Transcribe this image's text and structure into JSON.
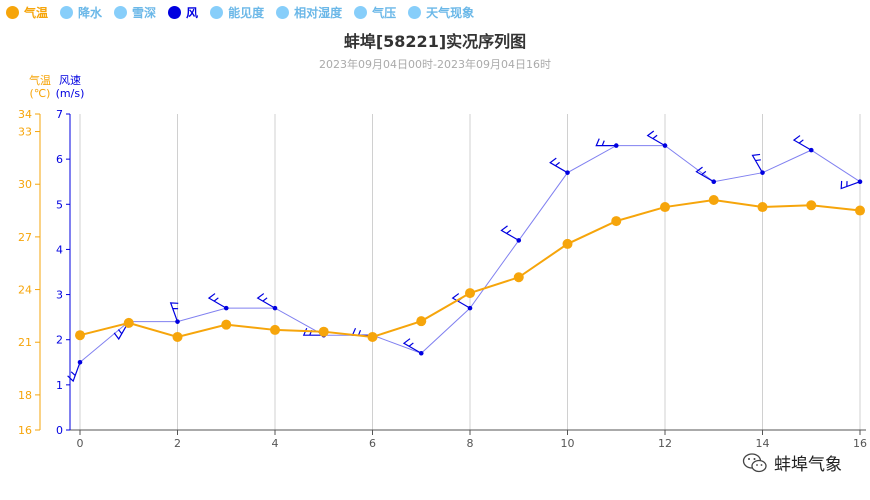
{
  "legend": [
    {
      "label": "气温",
      "color": "#f6a50b",
      "active": true
    },
    {
      "label": "降水",
      "color": "#87cefa",
      "active": false
    },
    {
      "label": "雪深",
      "color": "#87cefa",
      "active": false
    },
    {
      "label": "风",
      "color": "#0000e0",
      "active": true
    },
    {
      "label": "能见度",
      "color": "#87cefa",
      "active": false
    },
    {
      "label": "相对湿度",
      "color": "#87cefa",
      "active": false
    },
    {
      "label": "气压",
      "color": "#87cefa",
      "active": false
    },
    {
      "label": "天气现象",
      "color": "#87cefa",
      "active": false
    }
  ],
  "watermark": {
    "text": "蚌埠气象",
    "icon": "wechat-icon"
  },
  "colors": {
    "temperature": "#f6a50b",
    "wind": "#0000e0",
    "wind_line": "#8080f0",
    "grid": "#d0d0d0"
  },
  "chart_data": {
    "type": "line",
    "title": "蚌埠[58221]实况序列图",
    "subtitle": "2023年09月04日00时-2023年09月04日16时",
    "x": [
      0,
      1,
      2,
      3,
      4,
      5,
      6,
      7,
      8,
      9,
      10,
      11,
      12,
      13,
      14,
      15,
      16
    ],
    "x_ticks": [
      "0",
      "2",
      "4",
      "6",
      "8",
      "10",
      "12",
      "14",
      "16"
    ],
    "xlim": [
      0,
      16
    ],
    "grid": "vertical",
    "y_left": {
      "label": "气温",
      "unit": "(℃)",
      "ticks": [
        "16",
        "18",
        "21",
        "24",
        "27",
        "30",
        "33",
        "34"
      ],
      "ylim": [
        16,
        34
      ]
    },
    "y_right": {
      "label": "风速",
      "unit": "(m/s)",
      "ticks": [
        "0",
        "1",
        "2",
        "3",
        "4",
        "5",
        "6",
        "7"
      ],
      "ylim": [
        0,
        7
      ]
    },
    "series": [
      {
        "name": "气温",
        "axis": "left",
        "color": "#f6a50b",
        "values": [
          21.4,
          22.1,
          21.3,
          22.0,
          21.7,
          21.6,
          21.3,
          22.2,
          23.8,
          24.7,
          26.6,
          27.9,
          28.7,
          29.1,
          28.7,
          28.8,
          28.5
        ]
      },
      {
        "name": "风速",
        "axis": "right",
        "color": "#0000e0",
        "values": [
          1.5,
          2.4,
          2.4,
          2.7,
          2.7,
          2.1,
          2.1,
          1.7,
          2.7,
          4.2,
          5.7,
          6.3,
          6.3,
          5.5,
          5.7,
          6.2,
          5.5
        ],
        "barb_direction_deg": [
          200,
          210,
          340,
          300,
          300,
          270,
          270,
          300,
          300,
          300,
          300,
          270,
          300,
          300,
          330,
          300,
          250
        ]
      }
    ]
  }
}
